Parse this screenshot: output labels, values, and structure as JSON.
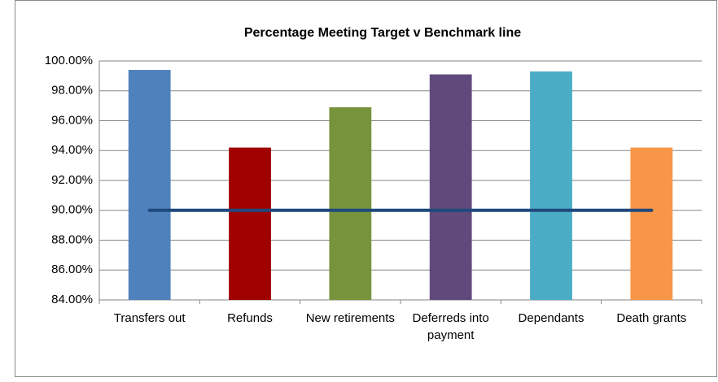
{
  "chart_data": {
    "type": "bar",
    "title": "Percentage Meeting Target v Benchmark line",
    "categories": [
      "Transfers out",
      "Refunds",
      "New retirements",
      "Deferreds into payment",
      "Dependants",
      "Death grants"
    ],
    "values": [
      99.4,
      94.2,
      96.9,
      99.1,
      99.3,
      94.2
    ],
    "colors": [
      "#4f81bd",
      "#a00000",
      "#77933c",
      "#604a7b",
      "#4bacc6",
      "#f79646"
    ],
    "benchmark": {
      "type": "line",
      "color": "#1f497d",
      "values": [
        90,
        90,
        90,
        90,
        90,
        90
      ]
    },
    "ylim": [
      84,
      100
    ],
    "yticks": [
      {
        "value": 84,
        "label": "84.00%"
      },
      {
        "value": 86,
        "label": "86.00%"
      },
      {
        "value": 88,
        "label": "88.00%"
      },
      {
        "value": 90,
        "label": "90.00%"
      },
      {
        "value": 92,
        "label": "92.00%"
      },
      {
        "value": 94,
        "label": "94.00%"
      },
      {
        "value": 96,
        "label": "96.00%"
      },
      {
        "value": 98,
        "label": "98.00%"
      },
      {
        "value": 100,
        "label": "100.00%"
      }
    ],
    "grid": true
  }
}
